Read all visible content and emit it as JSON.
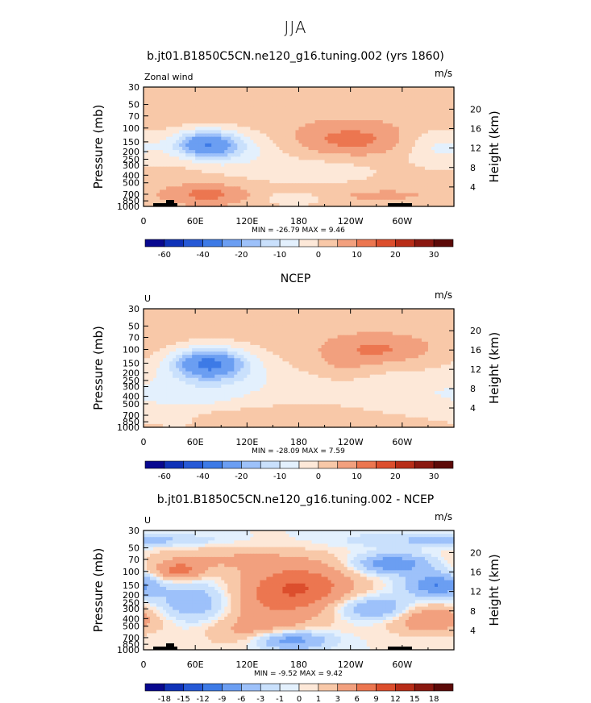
{
  "figure": {
    "title": "JJA"
  },
  "palettes": {
    "main": [
      "#08088f",
      "#0f32b8",
      "#2659d6",
      "#3d7ae6",
      "#6b9ef2",
      "#9dc1fa",
      "#c9e0fc",
      "#e3f0fd",
      "#fde8d8",
      "#f8c8a8",
      "#f2a07e",
      "#ec7650",
      "#dc4e2d",
      "#b82d18",
      "#8a1810",
      "#5c0a08"
    ],
    "diff": [
      "#08088f",
      "#0f32b8",
      "#2659d6",
      "#3d7ae6",
      "#6b9ef2",
      "#9dc1fa",
      "#c9e0fc",
      "#e3f0fd",
      "#fde8d8",
      "#f8c8a8",
      "#f2a07e",
      "#ec7650",
      "#dc4e2d",
      "#b82d18",
      "#8a1810",
      "#5c0a08"
    ]
  },
  "chart_data": [
    {
      "type": "heatmap",
      "title": "b.jt01.B1850C5CN.ne120_g16.tuning.002 (yrs 1860)",
      "top_left_label": "Zonal wind",
      "units": "m/s",
      "ylabel": "Pressure (mb)",
      "y2label": "Height (km)",
      "x_ticks": [
        "0",
        "60E",
        "120E",
        "180",
        "120W",
        "60W"
      ],
      "y_ticks": [
        "30",
        "50",
        "70",
        "100",
        "150",
        "200",
        "250",
        "300",
        "400",
        "500",
        "700",
        "850",
        "1000"
      ],
      "y2_ticks": [
        "20",
        "16",
        "12",
        "8",
        "4"
      ],
      "stats": "MIN = -26.79   MAX =   9.46",
      "min": -26.79,
      "max": 9.46,
      "colorbar_labels": [
        "-60",
        "-40",
        "-20",
        "-10",
        "0",
        "10",
        "20",
        "30"
      ],
      "levels": [
        -70,
        -60,
        -50,
        -40,
        -30,
        -20,
        -15,
        -10,
        -5,
        0,
        5,
        10,
        15,
        20,
        25,
        30
      ],
      "blobs": [
        {
          "lon": 72,
          "p": 160,
          "slon": 25,
          "sz": 0.28,
          "amp": -26
        },
        {
          "lon": 100,
          "p": 190,
          "slon": 40,
          "sz": 0.4,
          "amp": -10
        },
        {
          "lon": 345,
          "p": 180,
          "slon": 30,
          "sz": 0.4,
          "amp": -9
        },
        {
          "lon": 200,
          "p": 360,
          "slon": 60,
          "sz": 0.35,
          "amp": -6
        },
        {
          "lon": 175,
          "p": 800,
          "slon": 25,
          "sz": 0.15,
          "amp": -8
        },
        {
          "lon": 240,
          "p": 140,
          "slon": 45,
          "sz": 0.35,
          "amp": 9
        },
        {
          "lon": 75,
          "p": 700,
          "slon": 30,
          "sz": 0.2,
          "amp": 9
        },
        {
          "lon": 260,
          "p": 700,
          "slon": 70,
          "sz": 0.2,
          "amp": 3
        }
      ],
      "base": 3
    },
    {
      "type": "heatmap",
      "title": "NCEP",
      "top_left_label": "U",
      "units": "m/s",
      "ylabel": "Pressure (mb)",
      "y2label": "Height (km)",
      "x_ticks": [
        "0",
        "60E",
        "120E",
        "180",
        "120W",
        "60W"
      ],
      "y_ticks": [
        "30",
        "50",
        "70",
        "100",
        "150",
        "200",
        "250",
        "300",
        "400",
        "500",
        "700",
        "850",
        "1000"
      ],
      "y2_ticks": [
        "20",
        "16",
        "12",
        "8",
        "4"
      ],
      "stats": "MIN = -28.09   MAX =   7.59",
      "min": -28.09,
      "max": 7.59,
      "colorbar_labels": [
        "-60",
        "-40",
        "-20",
        "-10",
        "0",
        "10",
        "20",
        "30"
      ],
      "levels": [
        -70,
        -60,
        -50,
        -40,
        -30,
        -20,
        -15,
        -10,
        -5,
        0,
        5,
        10,
        15,
        20,
        25,
        30
      ],
      "blobs": [
        {
          "lon": 75,
          "p": 150,
          "slon": 28,
          "sz": 0.3,
          "amp": -28
        },
        {
          "lon": 90,
          "p": 200,
          "slon": 50,
          "sz": 0.55,
          "amp": -9
        },
        {
          "lon": 60,
          "p": 500,
          "slon": 60,
          "sz": 0.6,
          "amp": -6
        },
        {
          "lon": 210,
          "p": 300,
          "slon": 50,
          "sz": 0.35,
          "amp": -5
        },
        {
          "lon": 310,
          "p": 350,
          "slon": 60,
          "sz": 0.5,
          "amp": -6
        },
        {
          "lon": 270,
          "p": 100,
          "slon": 40,
          "sz": 0.3,
          "amp": 8
        },
        {
          "lon": 230,
          "p": 200,
          "slon": 25,
          "sz": 0.35,
          "amp": 4
        },
        {
          "lon": 95,
          "p": 700,
          "slon": 40,
          "sz": 0.2,
          "amp": 4
        }
      ],
      "base": 3
    },
    {
      "type": "heatmap",
      "title": "b.jt01.B1850C5CN.ne120_g16.tuning.002 - NCEP",
      "top_left_label": "U",
      "units": "m/s",
      "ylabel": "Pressure (mb)",
      "y2label": "Height (km)",
      "x_ticks": [
        "0",
        "60E",
        "120E",
        "180",
        "120W",
        "60W"
      ],
      "y_ticks": [
        "30",
        "50",
        "70",
        "100",
        "150",
        "200",
        "250",
        "300",
        "400",
        "500",
        "700",
        "850",
        "1000"
      ],
      "y2_ticks": [
        "20",
        "16",
        "12",
        "8",
        "4"
      ],
      "stats": "MIN =  -9.52   MAX =   9.42",
      "min": -9.52,
      "max": 9.42,
      "colorbar_labels": [
        "-18",
        "-15",
        "-12",
        "-9",
        "-6",
        "-3",
        "-1",
        "0",
        "1",
        "3",
        "6",
        "9",
        "12",
        "15",
        "18"
      ],
      "levels": [
        -21,
        -18,
        -15,
        -12,
        -9,
        -6,
        -3,
        -1,
        0,
        1,
        3,
        6,
        9,
        12,
        15,
        18
      ],
      "blobs": [
        {
          "lon": 180,
          "p": 150,
          "slon": 45,
          "sz": 0.45,
          "amp": 8
        },
        {
          "lon": 40,
          "p": 100,
          "slon": 20,
          "sz": 0.2,
          "amp": 7
        },
        {
          "lon": 100,
          "p": 70,
          "slon": 70,
          "sz": 0.25,
          "amp": 3
        },
        {
          "lon": 330,
          "p": 400,
          "slon": 35,
          "sz": 0.3,
          "amp": 6
        },
        {
          "lon": 150,
          "p": 300,
          "slon": 50,
          "sz": 0.5,
          "amp": 4
        },
        {
          "lon": 60,
          "p": 250,
          "slon": 30,
          "sz": 0.4,
          "amp": -6
        },
        {
          "lon": 290,
          "p": 80,
          "slon": 30,
          "sz": 0.2,
          "amp": -9
        },
        {
          "lon": 340,
          "p": 150,
          "slon": 25,
          "sz": 0.25,
          "amp": -9
        },
        {
          "lon": 270,
          "p": 300,
          "slon": 30,
          "sz": 0.25,
          "amp": -7
        },
        {
          "lon": 170,
          "p": 750,
          "slon": 30,
          "sz": 0.2,
          "amp": -9
        },
        {
          "lon": 320,
          "p": 40,
          "slon": 60,
          "sz": 0.15,
          "amp": -3
        },
        {
          "lon": 30,
          "p": 40,
          "slon": 40,
          "sz": 0.1,
          "amp": -2
        },
        {
          "lon": 130,
          "p": 600,
          "slon": 40,
          "sz": 0.3,
          "amp": 3
        }
      ],
      "base": 0
    }
  ]
}
